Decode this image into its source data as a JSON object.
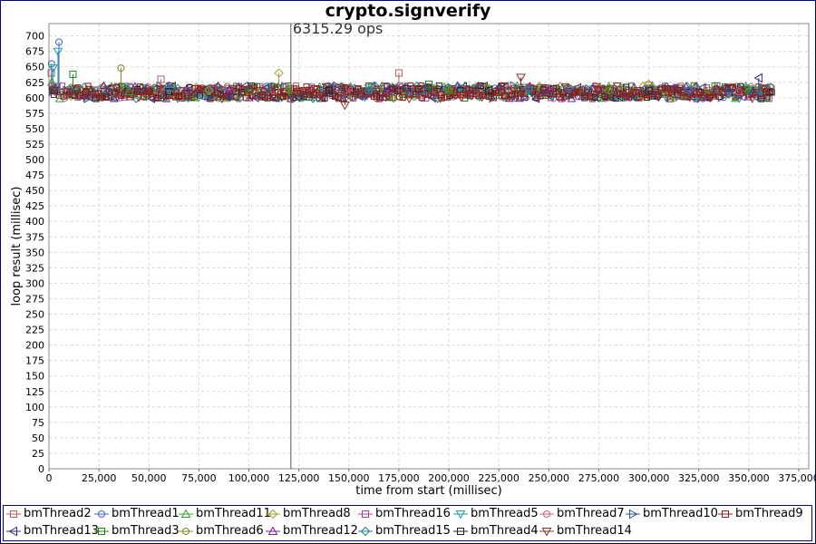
{
  "chart_data": {
    "type": "scatter",
    "title": "crypto.signverify",
    "xlabel": "time from start (millisec)",
    "ylabel": "loop result (millisec)",
    "xlim": [
      0,
      380000
    ],
    "ylim": [
      0,
      720
    ],
    "xticks": [
      "0",
      "25,000",
      "50,000",
      "75,000",
      "100,000",
      "125,000",
      "150,000",
      "175,000",
      "200,000",
      "225,000",
      "250,000",
      "275,000",
      "300,000",
      "325,000",
      "350,000",
      "375,000"
    ],
    "yticks": [
      "0",
      "25",
      "50",
      "75",
      "100",
      "125",
      "150",
      "175",
      "200",
      "225",
      "250",
      "275",
      "300",
      "325",
      "350",
      "375",
      "400",
      "425",
      "450",
      "475",
      "500",
      "525",
      "550",
      "575",
      "600",
      "625",
      "650",
      "675",
      "700"
    ],
    "grid": true,
    "legend_position": "bottom",
    "annotation": {
      "x": 121000,
      "text": "6315.29 ops"
    },
    "series": [
      {
        "name": "bmThread2",
        "marker": "square",
        "color": "#b06060",
        "values": [
          [
            1200,
            640
          ],
          [
            4000,
            618
          ],
          [
            56000,
            630
          ],
          [
            120000,
            615
          ],
          [
            175000,
            640
          ],
          [
            300000,
            620
          ]
        ]
      },
      {
        "name": "bmThread1",
        "marker": "circle",
        "color": "#4060c0",
        "values": [
          [
            1300,
            655
          ],
          [
            5000,
            690
          ],
          [
            60000,
            620
          ],
          [
            180000,
            612
          ],
          [
            260000,
            614
          ],
          [
            340000,
            610
          ]
        ]
      },
      {
        "name": "bmThread11",
        "marker": "triangle-up",
        "color": "#30a030",
        "values": [
          [
            1400,
            625
          ],
          [
            40000,
            610
          ],
          [
            120000,
            614
          ],
          [
            200000,
            612
          ],
          [
            280000,
            618
          ],
          [
            355000,
            612
          ]
        ]
      },
      {
        "name": "bmThread8",
        "marker": "diamond",
        "color": "#a0a030",
        "values": [
          [
            1500,
            620
          ],
          [
            80000,
            612
          ],
          [
            115000,
            640
          ],
          [
            220000,
            615
          ],
          [
            300000,
            622
          ],
          [
            350000,
            610
          ]
        ]
      },
      {
        "name": "bmThread16",
        "marker": "square",
        "color": "#a040a0",
        "values": [
          [
            1600,
            618
          ],
          [
            90000,
            615
          ],
          [
            160000,
            612
          ],
          [
            240000,
            616
          ],
          [
            320000,
            612
          ],
          [
            357000,
            610
          ]
        ]
      },
      {
        "name": "bmThread5",
        "marker": "triangle-down",
        "color": "#20a0a0",
        "values": [
          [
            2000,
            648
          ],
          [
            4500,
            675
          ],
          [
            60000,
            612
          ],
          [
            160000,
            616
          ],
          [
            240000,
            612
          ],
          [
            350000,
            614
          ]
        ]
      },
      {
        "name": "bmThread7",
        "marker": "circle",
        "color": "#c06080",
        "values": [
          [
            1700,
            615
          ],
          [
            70000,
            612
          ],
          [
            150000,
            616
          ],
          [
            230000,
            614
          ],
          [
            300000,
            612
          ],
          [
            345000,
            610
          ]
        ]
      },
      {
        "name": "bmThread10",
        "marker": "triangle-right",
        "color": "#305080",
        "values": [
          [
            1800,
            610
          ],
          [
            30000,
            612
          ],
          [
            110000,
            614
          ],
          [
            190000,
            612
          ],
          [
            270000,
            614
          ],
          [
            340000,
            612
          ]
        ]
      },
      {
        "name": "bmThread9",
        "marker": "square",
        "color": "#8b2020",
        "values": [
          [
            1900,
            612
          ],
          [
            50000,
            610
          ],
          [
            130000,
            612
          ],
          [
            210000,
            612
          ],
          [
            290000,
            612
          ],
          [
            360000,
            610
          ]
        ]
      },
      {
        "name": "bmThread13",
        "marker": "triangle-left",
        "color": "#303070",
        "values": [
          [
            2100,
            615
          ],
          [
            70000,
            612
          ],
          [
            140000,
            614
          ],
          [
            220000,
            612
          ],
          [
            300000,
            612
          ],
          [
            355000,
            632
          ]
        ]
      },
      {
        "name": "bmThread3",
        "marker": "square",
        "color": "#208020",
        "values": [
          [
            2200,
            612
          ],
          [
            12000,
            638
          ],
          [
            100000,
            612
          ],
          [
            190000,
            622
          ],
          [
            280000,
            612
          ],
          [
            350000,
            612
          ]
        ]
      },
      {
        "name": "bmThread6",
        "marker": "circle",
        "color": "#808020",
        "values": [
          [
            2300,
            612
          ],
          [
            36000,
            648
          ],
          [
            120000,
            612
          ],
          [
            200000,
            614
          ],
          [
            280000,
            612
          ],
          [
            330000,
            612
          ]
        ]
      },
      {
        "name": "bmThread12",
        "marker": "triangle-up",
        "color": "#702090",
        "values": [
          [
            2400,
            612
          ],
          [
            90000,
            612
          ],
          [
            170000,
            614
          ],
          [
            250000,
            612
          ],
          [
            320000,
            612
          ],
          [
            352000,
            610
          ]
        ]
      },
      {
        "name": "bmThread15",
        "marker": "diamond",
        "color": "#208090",
        "values": [
          [
            2500,
            612
          ],
          [
            80000,
            614
          ],
          [
            160000,
            612
          ],
          [
            240000,
            614
          ],
          [
            320000,
            612
          ],
          [
            356000,
            612
          ]
        ]
      },
      {
        "name": "bmThread4",
        "marker": "square",
        "color": "#202020",
        "values": [
          [
            2600,
            612
          ],
          [
            60000,
            610
          ],
          [
            140000,
            612
          ],
          [
            220000,
            612
          ],
          [
            300000,
            612
          ],
          [
            359000,
            610
          ]
        ]
      },
      {
        "name": "bmThread14",
        "marker": "triangle-down",
        "color": "#8b3020",
        "values": [
          [
            2700,
            612
          ],
          [
            100000,
            612
          ],
          [
            148000,
            588
          ],
          [
            236000,
            633
          ],
          [
            310000,
            612
          ],
          [
            358000,
            610
          ]
        ]
      }
    ]
  }
}
